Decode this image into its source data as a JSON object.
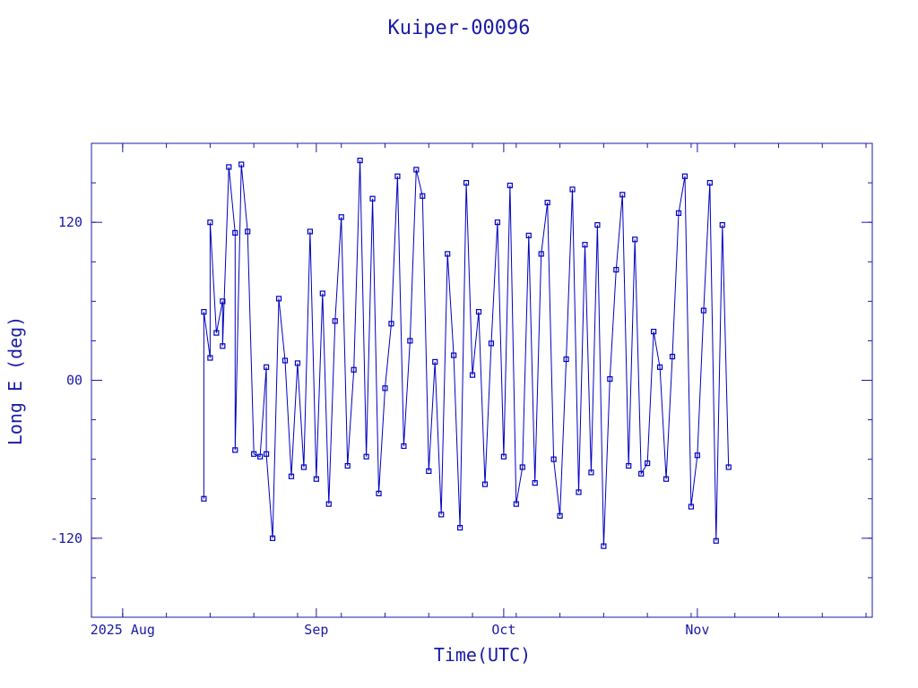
{
  "chart_data": {
    "type": "line",
    "title": "Kuiper-00096",
    "xlabel": "Time(UTC)",
    "ylabel": "Long E (deg)",
    "xlim": [
      "2025-07-27",
      "2025-11-29"
    ],
    "ylim": [
      -180,
      180
    ],
    "x_ticks": [
      {
        "date": "2025-08-01",
        "label": "2025 Aug"
      },
      {
        "date": "2025-09-01",
        "label": "Sep"
      },
      {
        "date": "2025-10-01",
        "label": "Oct"
      },
      {
        "date": "2025-11-01",
        "label": "Nov"
      }
    ],
    "y_ticks": [
      {
        "value": 120,
        "label": "120"
      },
      {
        "value": 0,
        "label": "00"
      },
      {
        "value": -120,
        "label": "-120"
      }
    ],
    "grid": false,
    "series": [
      {
        "color": "#0000c0",
        "marker": "square",
        "x": [
          "2025-08-14",
          "2025-08-14",
          "2025-08-15",
          "2025-08-15",
          "2025-08-16",
          "2025-08-17",
          "2025-08-17",
          "2025-08-18",
          "2025-08-19",
          "2025-08-19",
          "2025-08-20",
          "2025-08-21",
          "2025-08-22",
          "2025-08-23",
          "2025-08-24",
          "2025-08-24",
          "2025-08-25",
          "2025-08-26",
          "2025-08-27",
          "2025-08-28",
          "2025-08-29",
          "2025-08-30",
          "2025-08-31",
          "2025-09-01",
          "2025-09-02",
          "2025-09-03",
          "2025-09-04",
          "2025-09-05",
          "2025-09-06",
          "2025-09-07",
          "2025-09-08",
          "2025-09-09",
          "2025-09-10",
          "2025-09-11",
          "2025-09-12",
          "2025-09-13",
          "2025-09-14",
          "2025-09-15",
          "2025-09-16",
          "2025-09-17",
          "2025-09-18",
          "2025-09-19",
          "2025-09-20",
          "2025-09-21",
          "2025-09-22",
          "2025-09-23",
          "2025-09-24",
          "2025-09-25",
          "2025-09-26",
          "2025-09-27",
          "2025-09-28",
          "2025-09-29",
          "2025-09-30",
          "2025-10-01",
          "2025-10-02",
          "2025-10-03",
          "2025-10-04",
          "2025-10-05",
          "2025-10-06",
          "2025-10-07",
          "2025-10-08",
          "2025-10-09",
          "2025-10-10",
          "2025-10-11",
          "2025-10-12",
          "2025-10-13",
          "2025-10-14",
          "2025-10-15",
          "2025-10-16",
          "2025-10-17",
          "2025-10-18",
          "2025-10-19",
          "2025-10-20",
          "2025-10-21",
          "2025-10-22",
          "2025-10-23",
          "2025-10-24",
          "2025-10-25",
          "2025-10-26",
          "2025-10-27",
          "2025-10-28",
          "2025-10-29",
          "2025-10-30",
          "2025-10-31",
          "2025-11-01",
          "2025-11-02",
          "2025-11-03",
          "2025-11-04",
          "2025-11-05",
          "2025-11-06"
        ],
        "y": [
          -90,
          52,
          17,
          120,
          36,
          60,
          26,
          162,
          112,
          -53,
          164,
          113,
          -56,
          -58,
          10,
          -56,
          -120,
          62,
          15,
          -73,
          13,
          -66,
          113,
          -75,
          66,
          -94,
          45,
          124,
          -65,
          8,
          167,
          -58,
          138,
          -86,
          -6,
          43,
          155,
          -50,
          30,
          160,
          140,
          -69,
          14,
          -102,
          96,
          19,
          -112,
          150,
          4,
          52,
          -79,
          28,
          120,
          -58,
          148,
          -94,
          -66,
          110,
          -78,
          96,
          135,
          -60,
          -103,
          16,
          145,
          -85,
          103,
          -70,
          118,
          -126,
          1,
          84,
          141,
          -65,
          107,
          -71,
          -63,
          37,
          10,
          -75,
          18,
          127,
          155,
          -96,
          -57,
          53,
          150,
          -122,
          118,
          -66
        ]
      }
    ]
  }
}
